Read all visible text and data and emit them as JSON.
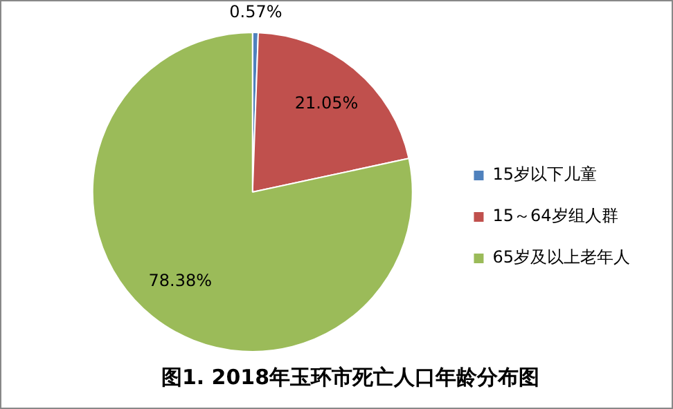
{
  "chart_data": {
    "type": "pie",
    "title": "图1. 2018年玉环市死亡人口年龄分布图",
    "categories": [
      "15岁以下儿童",
      "15～64岁组人群",
      "65岁及以上老年人"
    ],
    "values": [
      0.57,
      21.05,
      78.38
    ],
    "colors": [
      "#4f81bd",
      "#c0504d",
      "#9bbb59"
    ],
    "value_labels": [
      "0.57%",
      "21.05%",
      "78.38%"
    ],
    "legend": "right"
  }
}
